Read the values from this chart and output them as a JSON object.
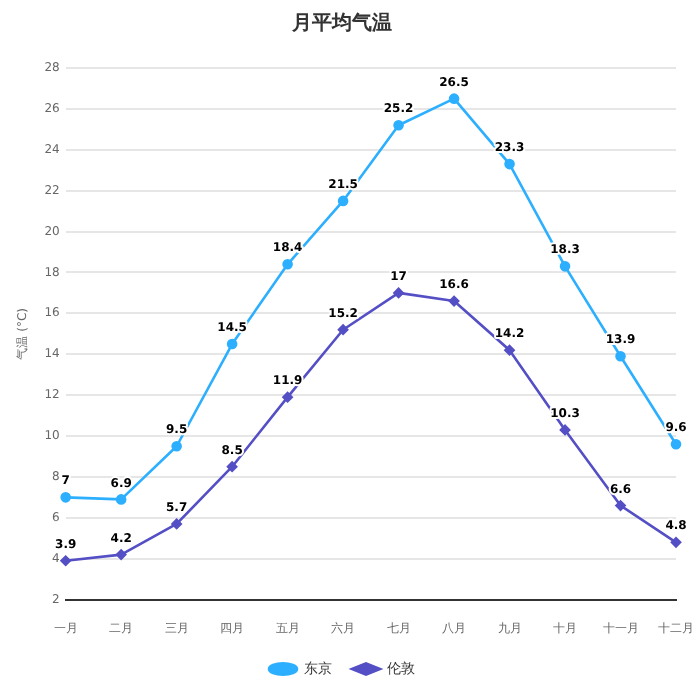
{
  "chart_data": {
    "type": "line",
    "title": "月平均气温",
    "ylabel": "气温 (°C)",
    "categories": [
      "一月",
      "二月",
      "三月",
      "四月",
      "五月",
      "六月",
      "七月",
      "八月",
      "九月",
      "十月",
      "十一月",
      "十二月"
    ],
    "series": [
      {
        "name": "东京",
        "color": "#2caffe",
        "marker": "circle",
        "values": [
          7,
          6.9,
          9.5,
          14.5,
          18.4,
          21.5,
          25.2,
          26.5,
          23.3,
          18.3,
          13.9,
          9.6
        ]
      },
      {
        "name": "伦敦",
        "color": "#544fc5",
        "marker": "diamond",
        "values": [
          3.9,
          4.2,
          5.7,
          8.5,
          11.9,
          15.2,
          17,
          16.6,
          14.2,
          10.3,
          6.6,
          4.8
        ]
      }
    ],
    "ylim": [
      2,
      28
    ],
    "yticks": [
      2,
      4,
      6,
      8,
      10,
      12,
      14,
      16,
      18,
      20,
      22,
      24,
      26,
      28
    ],
    "grid": "y",
    "legend": "bottom",
    "data_labels": true
  }
}
